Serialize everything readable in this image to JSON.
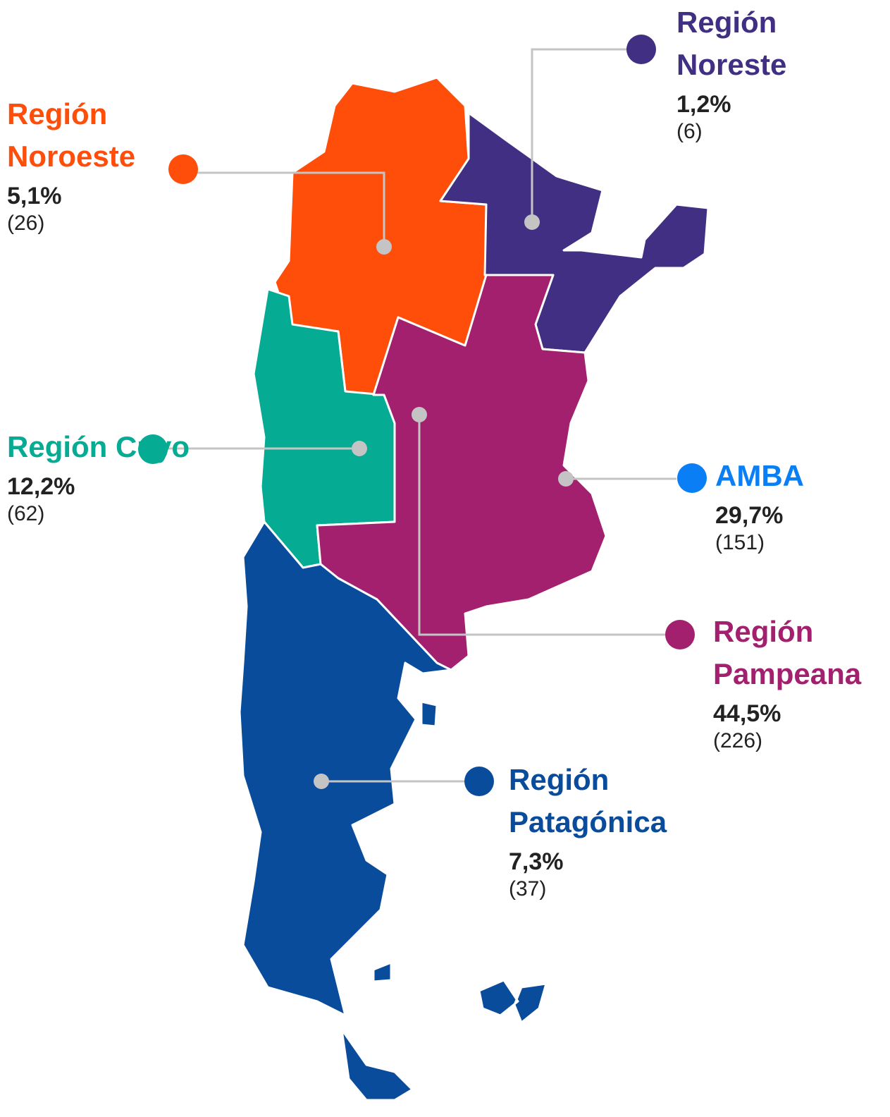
{
  "regions": [
    {
      "name": "Región Noreste",
      "percent": "1,2%",
      "count": "(6)",
      "color": "#402f82"
    },
    {
      "name": "Región Noroeste",
      "percent": "5,1%",
      "count": "(26)",
      "color": "#ff4d0a"
    },
    {
      "name": "Región Cuyo",
      "percent": "12,2%",
      "count": "(62)",
      "color": "#05ab93"
    },
    {
      "name": "AMBA",
      "percent": "29,7%",
      "count": "(151)",
      "color": "#0a7ff5"
    },
    {
      "name": "Región Pampeana",
      "percent": "44,5%",
      "count": "(226)",
      "color": "#a3206e"
    },
    {
      "name": "Región Patagónica",
      "percent": "7,3%",
      "count": "(37)",
      "color": "#0a4c9c"
    }
  ]
}
